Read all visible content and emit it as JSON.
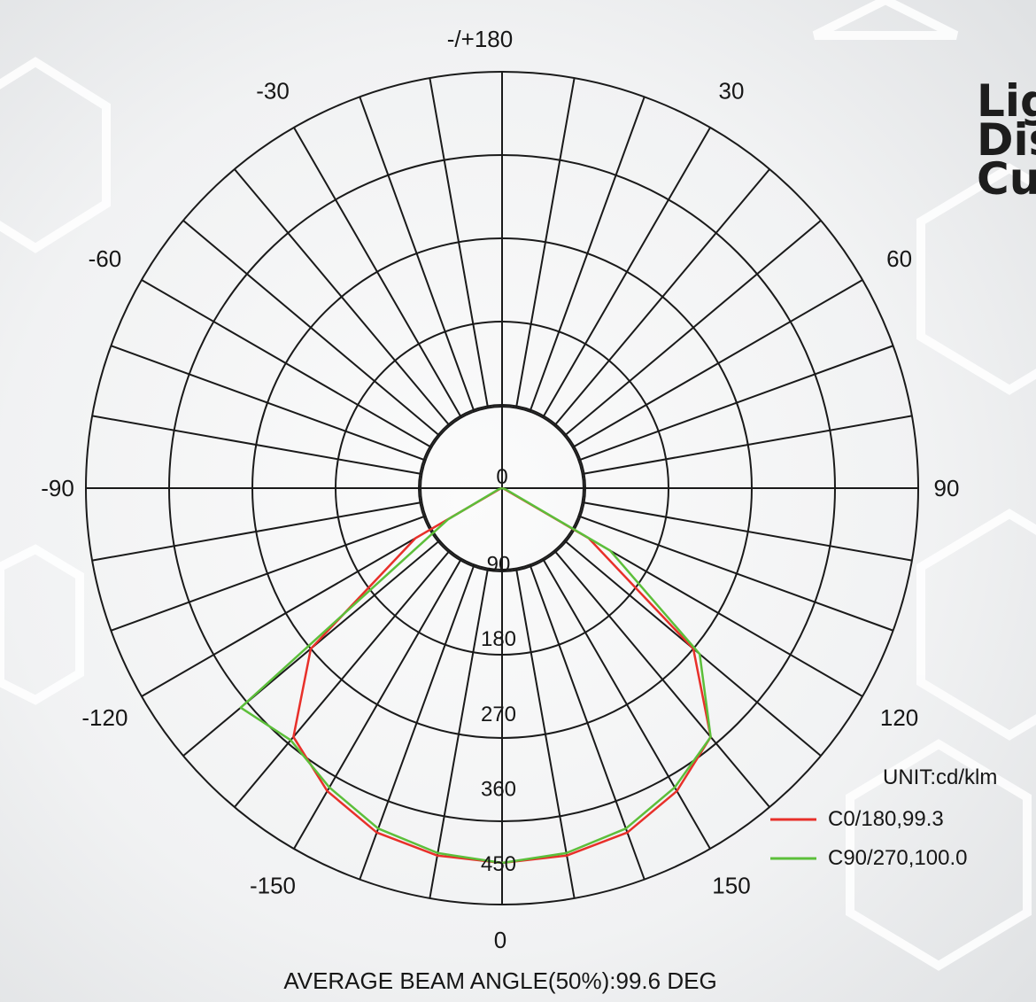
{
  "heading": {
    "line1": "Lig",
    "line2": "Dis",
    "line3": "Cu"
  },
  "chart_data": {
    "type": "polar",
    "unit_label": "UNIT:cd/klm",
    "footer": "AVERAGE BEAM ANGLE(50%):99.6 DEG",
    "top_label": "-/+180",
    "bottom_label": "0",
    "center_label": "0",
    "angle_labels": [
      {
        "text": "-150",
        "angle": -150
      },
      {
        "text": "150",
        "angle": 150
      },
      {
        "text": "-120",
        "angle": -120
      },
      {
        "text": "120",
        "angle": 120
      },
      {
        "text": "-90",
        "angle": -90
      },
      {
        "text": "90",
        "angle": 90
      },
      {
        "text": "-60",
        "angle": -60
      },
      {
        "text": "60",
        "angle": 60
      },
      {
        "text": "-30",
        "angle": -30
      },
      {
        "text": "30",
        "angle": 30
      }
    ],
    "radial_max": 500,
    "radial_rings": [
      100,
      200,
      300,
      400,
      500
    ],
    "radial_labels": [
      "90",
      "180",
      "270",
      "360",
      "450"
    ],
    "radial_label_values": [
      90,
      180,
      270,
      360,
      450
    ],
    "spoke_step_deg": 10,
    "series": [
      {
        "name": "C0/180,99.3",
        "color": "#e8302a",
        "angles": [
          -90,
          -80,
          -70,
          -60,
          -50,
          -40,
          -30,
          -20,
          -10,
          0,
          10,
          20,
          30,
          40,
          50,
          60,
          70,
          80,
          90
        ],
        "values": [
          0,
          0,
          2,
          120,
          300,
          390,
          420,
          440,
          448,
          450,
          448,
          440,
          420,
          390,
          300,
          120,
          2,
          0,
          0
        ]
      },
      {
        "name": "C90/270,100.0",
        "color": "#5cbf3a",
        "angles": [
          -90,
          -80,
          -70,
          -60,
          -50,
          -40,
          -30,
          -20,
          -10,
          0,
          10,
          20,
          30,
          40,
          50,
          60,
          70,
          80,
          90
        ],
        "values": [
          0,
          0,
          5,
          75,
          410,
          395,
          415,
          435,
          445,
          450,
          445,
          435,
          415,
          390,
          310,
          150,
          5,
          0,
          0
        ]
      }
    ]
  }
}
